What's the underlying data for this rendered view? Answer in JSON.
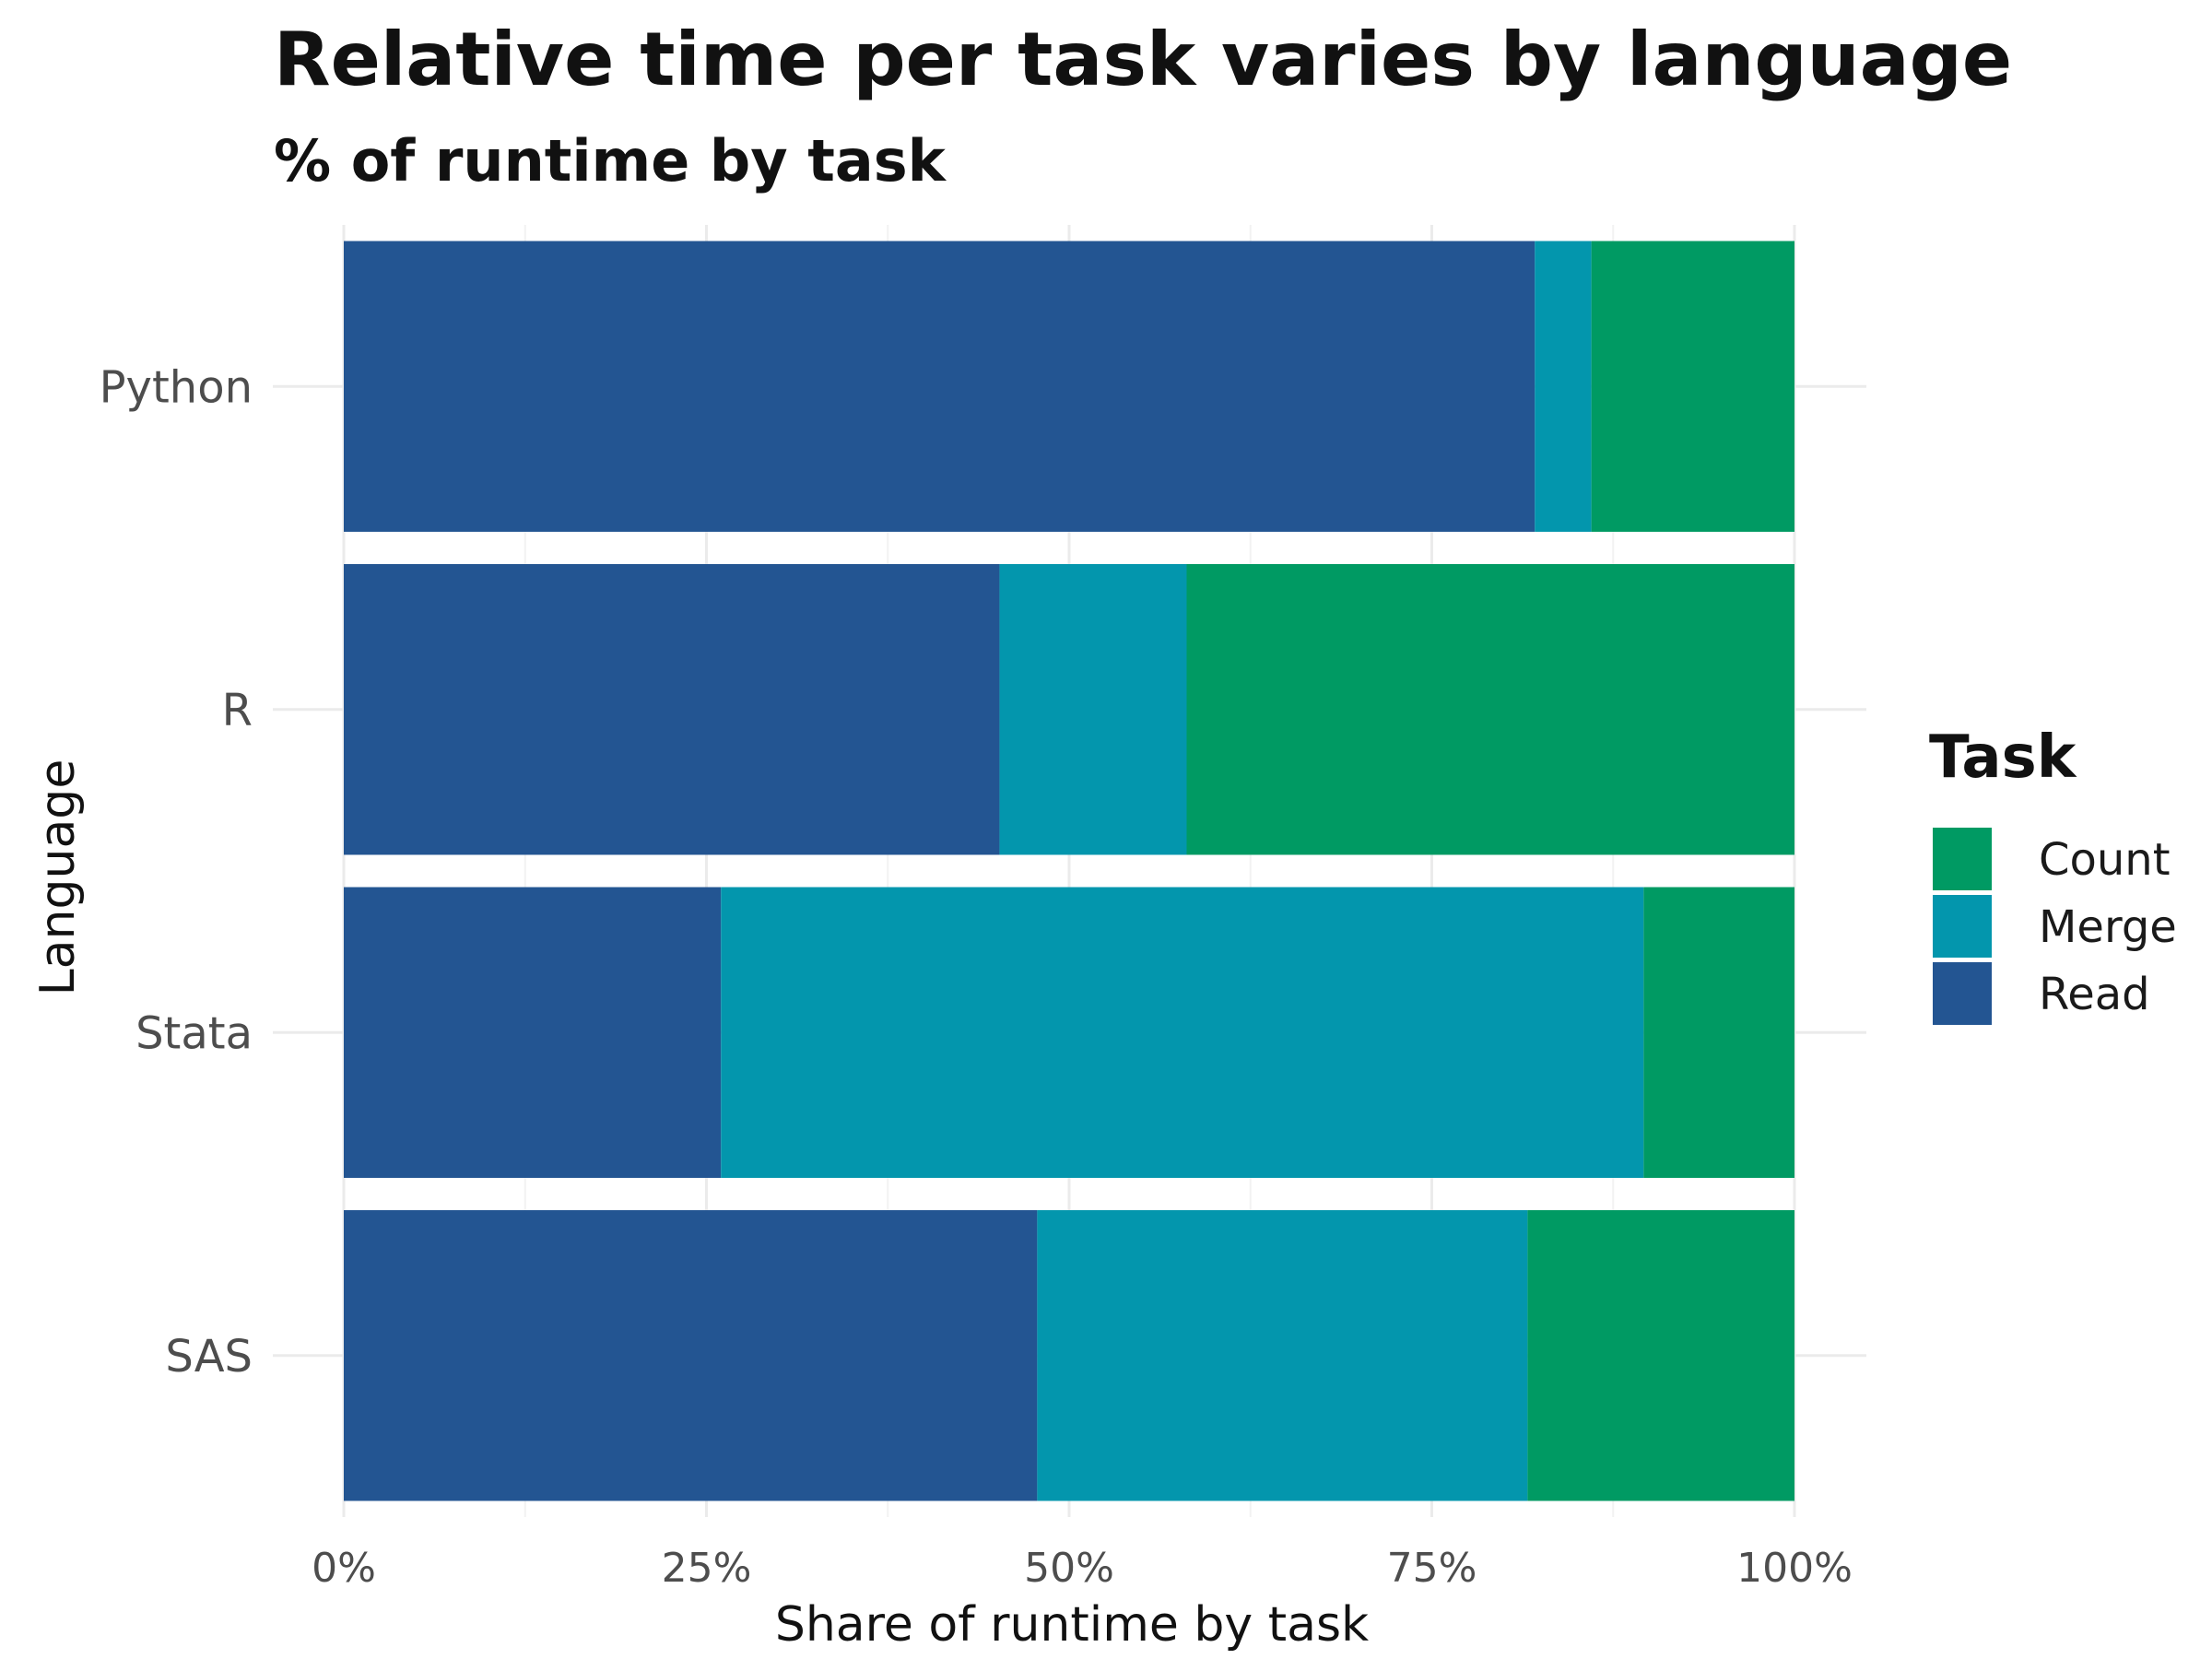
{
  "chart_data": {
    "type": "bar",
    "orientation": "horizontal",
    "stacked": "percent",
    "title": "Relative time per task varies by language",
    "subtitle": "% of runtime by task",
    "xlabel": "Share of runtime by task",
    "ylabel": "Language",
    "xlim": [
      0,
      100
    ],
    "x_ticks": [
      "0%",
      "25%",
      "50%",
      "75%",
      "100%"
    ],
    "categories": [
      "Python",
      "R",
      "Stata",
      "SAS"
    ],
    "series": [
      {
        "name": "Read",
        "color": "#235592",
        "values": [
          82.1,
          45.2,
          26.0,
          47.8
        ]
      },
      {
        "name": "Merge",
        "color": "#0396ad",
        "values": [
          3.9,
          12.9,
          63.6,
          33.8
        ]
      },
      {
        "name": "Count",
        "color": "#009a63",
        "values": [
          14.0,
          41.9,
          10.4,
          18.4
        ]
      }
    ],
    "grid": true,
    "legend": {
      "title": "Task",
      "position": "right",
      "entries": [
        {
          "name": "Count",
          "color": "#009a63"
        },
        {
          "name": "Merge",
          "color": "#0396ad"
        },
        {
          "name": "Read",
          "color": "#235592"
        }
      ]
    }
  }
}
